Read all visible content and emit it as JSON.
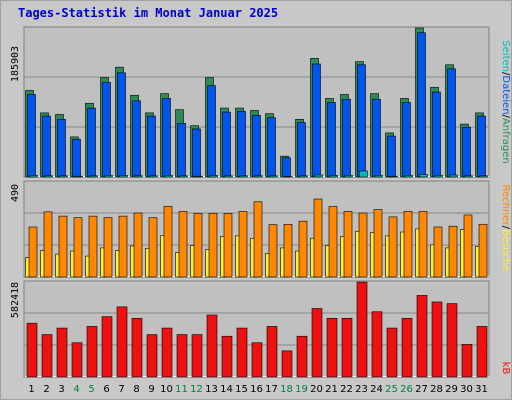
{
  "title": "Tages-Statistik im Monat Januar 2025",
  "colors": {
    "anfragen": "#2e8b57",
    "dateien": "#0055ee",
    "seiten": "#00bbbb",
    "besuche": "#ffee33",
    "rechner": "#ff8800",
    "kb": "#ee1111",
    "weekend_day": "#008040",
    "weekday": "#000000"
  },
  "right_labels": {
    "anfragen": "Anfragen",
    "dateien": "Dateien",
    "seiten": "Seiten",
    "besuche": "Besuche",
    "rechner": "Rechner",
    "kb": "kB",
    "sep": "/"
  },
  "chart_data": [
    {
      "type": "bar",
      "panel": "top",
      "max_label": "185903",
      "ylim": [
        0,
        185903
      ],
      "categories": [
        "1",
        "2",
        "3",
        "4",
        "5",
        "6",
        "7",
        "8",
        "9",
        "10",
        "11",
        "12",
        "13",
        "14",
        "15",
        "16",
        "17",
        "18",
        "19",
        "20",
        "21",
        "22",
        "23",
        "24",
        "25",
        "26",
        "27",
        "28",
        "29",
        "30",
        "31"
      ],
      "weekend_days": [
        "4",
        "5",
        "11",
        "12",
        "18",
        "19",
        "25",
        "26"
      ],
      "series": [
        {
          "name": "Anfragen",
          "values": [
            108000,
            80000,
            78000,
            50000,
            92000,
            124000,
            137000,
            102000,
            80000,
            104000,
            84000,
            64000,
            124000,
            86000,
            86000,
            83000,
            79000,
            26000,
            72000,
            148000,
            98000,
            103000,
            144000,
            104000,
            55000,
            98000,
            186000,
            112000,
            140000,
            66000,
            80000
          ]
        },
        {
          "name": "Dateien",
          "values": [
            103000,
            76000,
            72000,
            47000,
            86000,
            118000,
            130000,
            95000,
            76000,
            98000,
            67000,
            60000,
            114000,
            81000,
            82000,
            77000,
            74000,
            24000,
            68000,
            141000,
            93000,
            97000,
            140000,
            97000,
            51000,
            93000,
            180000,
            106000,
            135000,
            62000,
            76000
          ]
        },
        {
          "name": "Seiten",
          "values": [
            2000,
            1500,
            1500,
            1000,
            1500,
            2000,
            2000,
            1500,
            1500,
            2000,
            1500,
            1000,
            2000,
            1500,
            1500,
            1500,
            1500,
            500,
            1500,
            2500,
            2000,
            2000,
            7500,
            2000,
            1000,
            2000,
            3000,
            2000,
            2500,
            1500,
            1500
          ]
        }
      ]
    },
    {
      "type": "bar",
      "panel": "middle",
      "max_label": "490",
      "ylim": [
        0,
        490
      ],
      "series": [
        {
          "name": "Rechner",
          "values": [
            258,
            336,
            314,
            306,
            314,
            306,
            314,
            330,
            306,
            364,
            338,
            328,
            328,
            328,
            338,
            388,
            270,
            272,
            288,
            402,
            364,
            338,
            330,
            348,
            310,
            338,
            338,
            258,
            262,
            320,
            272
          ]
        },
        {
          "name": "Besuche",
          "values": [
            100,
            136,
            118,
            134,
            108,
            150,
            136,
            160,
            148,
            213,
            126,
            162,
            142,
            210,
            212,
            200,
            122,
            150,
            134,
            200,
            162,
            210,
            236,
            230,
            212,
            232,
            248,
            166,
            150,
            244,
            158
          ]
        }
      ]
    },
    {
      "type": "bar",
      "panel": "bottom",
      "max_label": "582418",
      "ylim": [
        0,
        582418
      ],
      "series": [
        {
          "name": "kB",
          "values": [
            330000,
            260000,
            300000,
            210000,
            310000,
            370000,
            430000,
            360000,
            260000,
            300000,
            260000,
            260000,
            380000,
            250000,
            300000,
            210000,
            310000,
            160000,
            250000,
            420000,
            360000,
            360000,
            582000,
            400000,
            300000,
            360000,
            500000,
            460000,
            450000,
            200000,
            310000
          ]
        }
      ]
    }
  ]
}
